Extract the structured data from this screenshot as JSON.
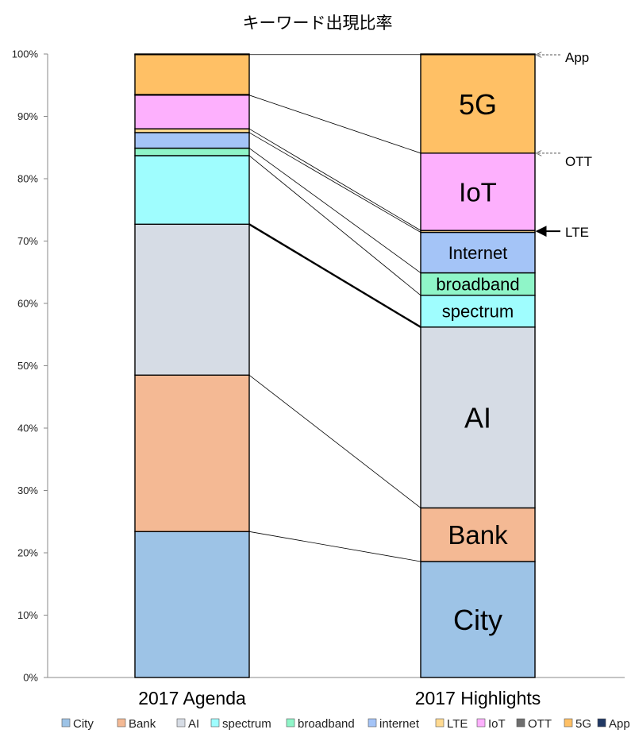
{
  "chart_data": {
    "type": "bar",
    "stacked": true,
    "normalized": true,
    "title": "キーワード出現比率",
    "categories": [
      "2017 Agenda",
      "2017 Highlights"
    ],
    "yticks": [
      "0%",
      "10%",
      "20%",
      "30%",
      "40%",
      "50%",
      "60%",
      "70%",
      "80%",
      "90%",
      "100%"
    ],
    "ylim": [
      0,
      100
    ],
    "series": [
      {
        "name": "City",
        "color": "#9dc3e6",
        "values": [
          23.4,
          18.6
        ],
        "label": "City"
      },
      {
        "name": "Bank",
        "color": "#f4b994",
        "values": [
          25.1,
          8.6
        ],
        "label": "Bank"
      },
      {
        "name": "AI",
        "color": "#d6dce5",
        "values": [
          24.2,
          29.0
        ],
        "label": "AI"
      },
      {
        "name": "spectrum",
        "color": "#9ffdfe",
        "values": [
          11.0,
          5.1
        ],
        "label": "spectrum"
      },
      {
        "name": "broadband",
        "color": "#8ff5c8",
        "values": [
          1.2,
          3.6
        ],
        "label": "broadband"
      },
      {
        "name": "internet",
        "color": "#a4c4f7",
        "values": [
          2.5,
          6.5
        ],
        "label": "Internet"
      },
      {
        "name": "LTE",
        "color": "#ffda91",
        "values": [
          0.6,
          0.3
        ],
        "label": ""
      },
      {
        "name": "IoT",
        "color": "#fdb0fd",
        "values": [
          5.4,
          12.4
        ],
        "label": "IoT"
      },
      {
        "name": "OTT",
        "color": "#6e6e6e",
        "values": [
          0.1,
          0.0
        ],
        "label": ""
      },
      {
        "name": "5G",
        "color": "#ffc065",
        "values": [
          6.4,
          15.8
        ],
        "label": "5G"
      },
      {
        "name": "App",
        "color": "#203864",
        "values": [
          0.1,
          0.1
        ],
        "label": ""
      }
    ],
    "annotations": [
      {
        "text": "App",
        "series": "App",
        "style": "dashed"
      },
      {
        "text": "OTT",
        "series": "OTT",
        "style": "dashed"
      },
      {
        "text": "LTE",
        "series": "LTE",
        "style": "solid"
      }
    ],
    "legend_position": "bottom",
    "grid": false
  }
}
